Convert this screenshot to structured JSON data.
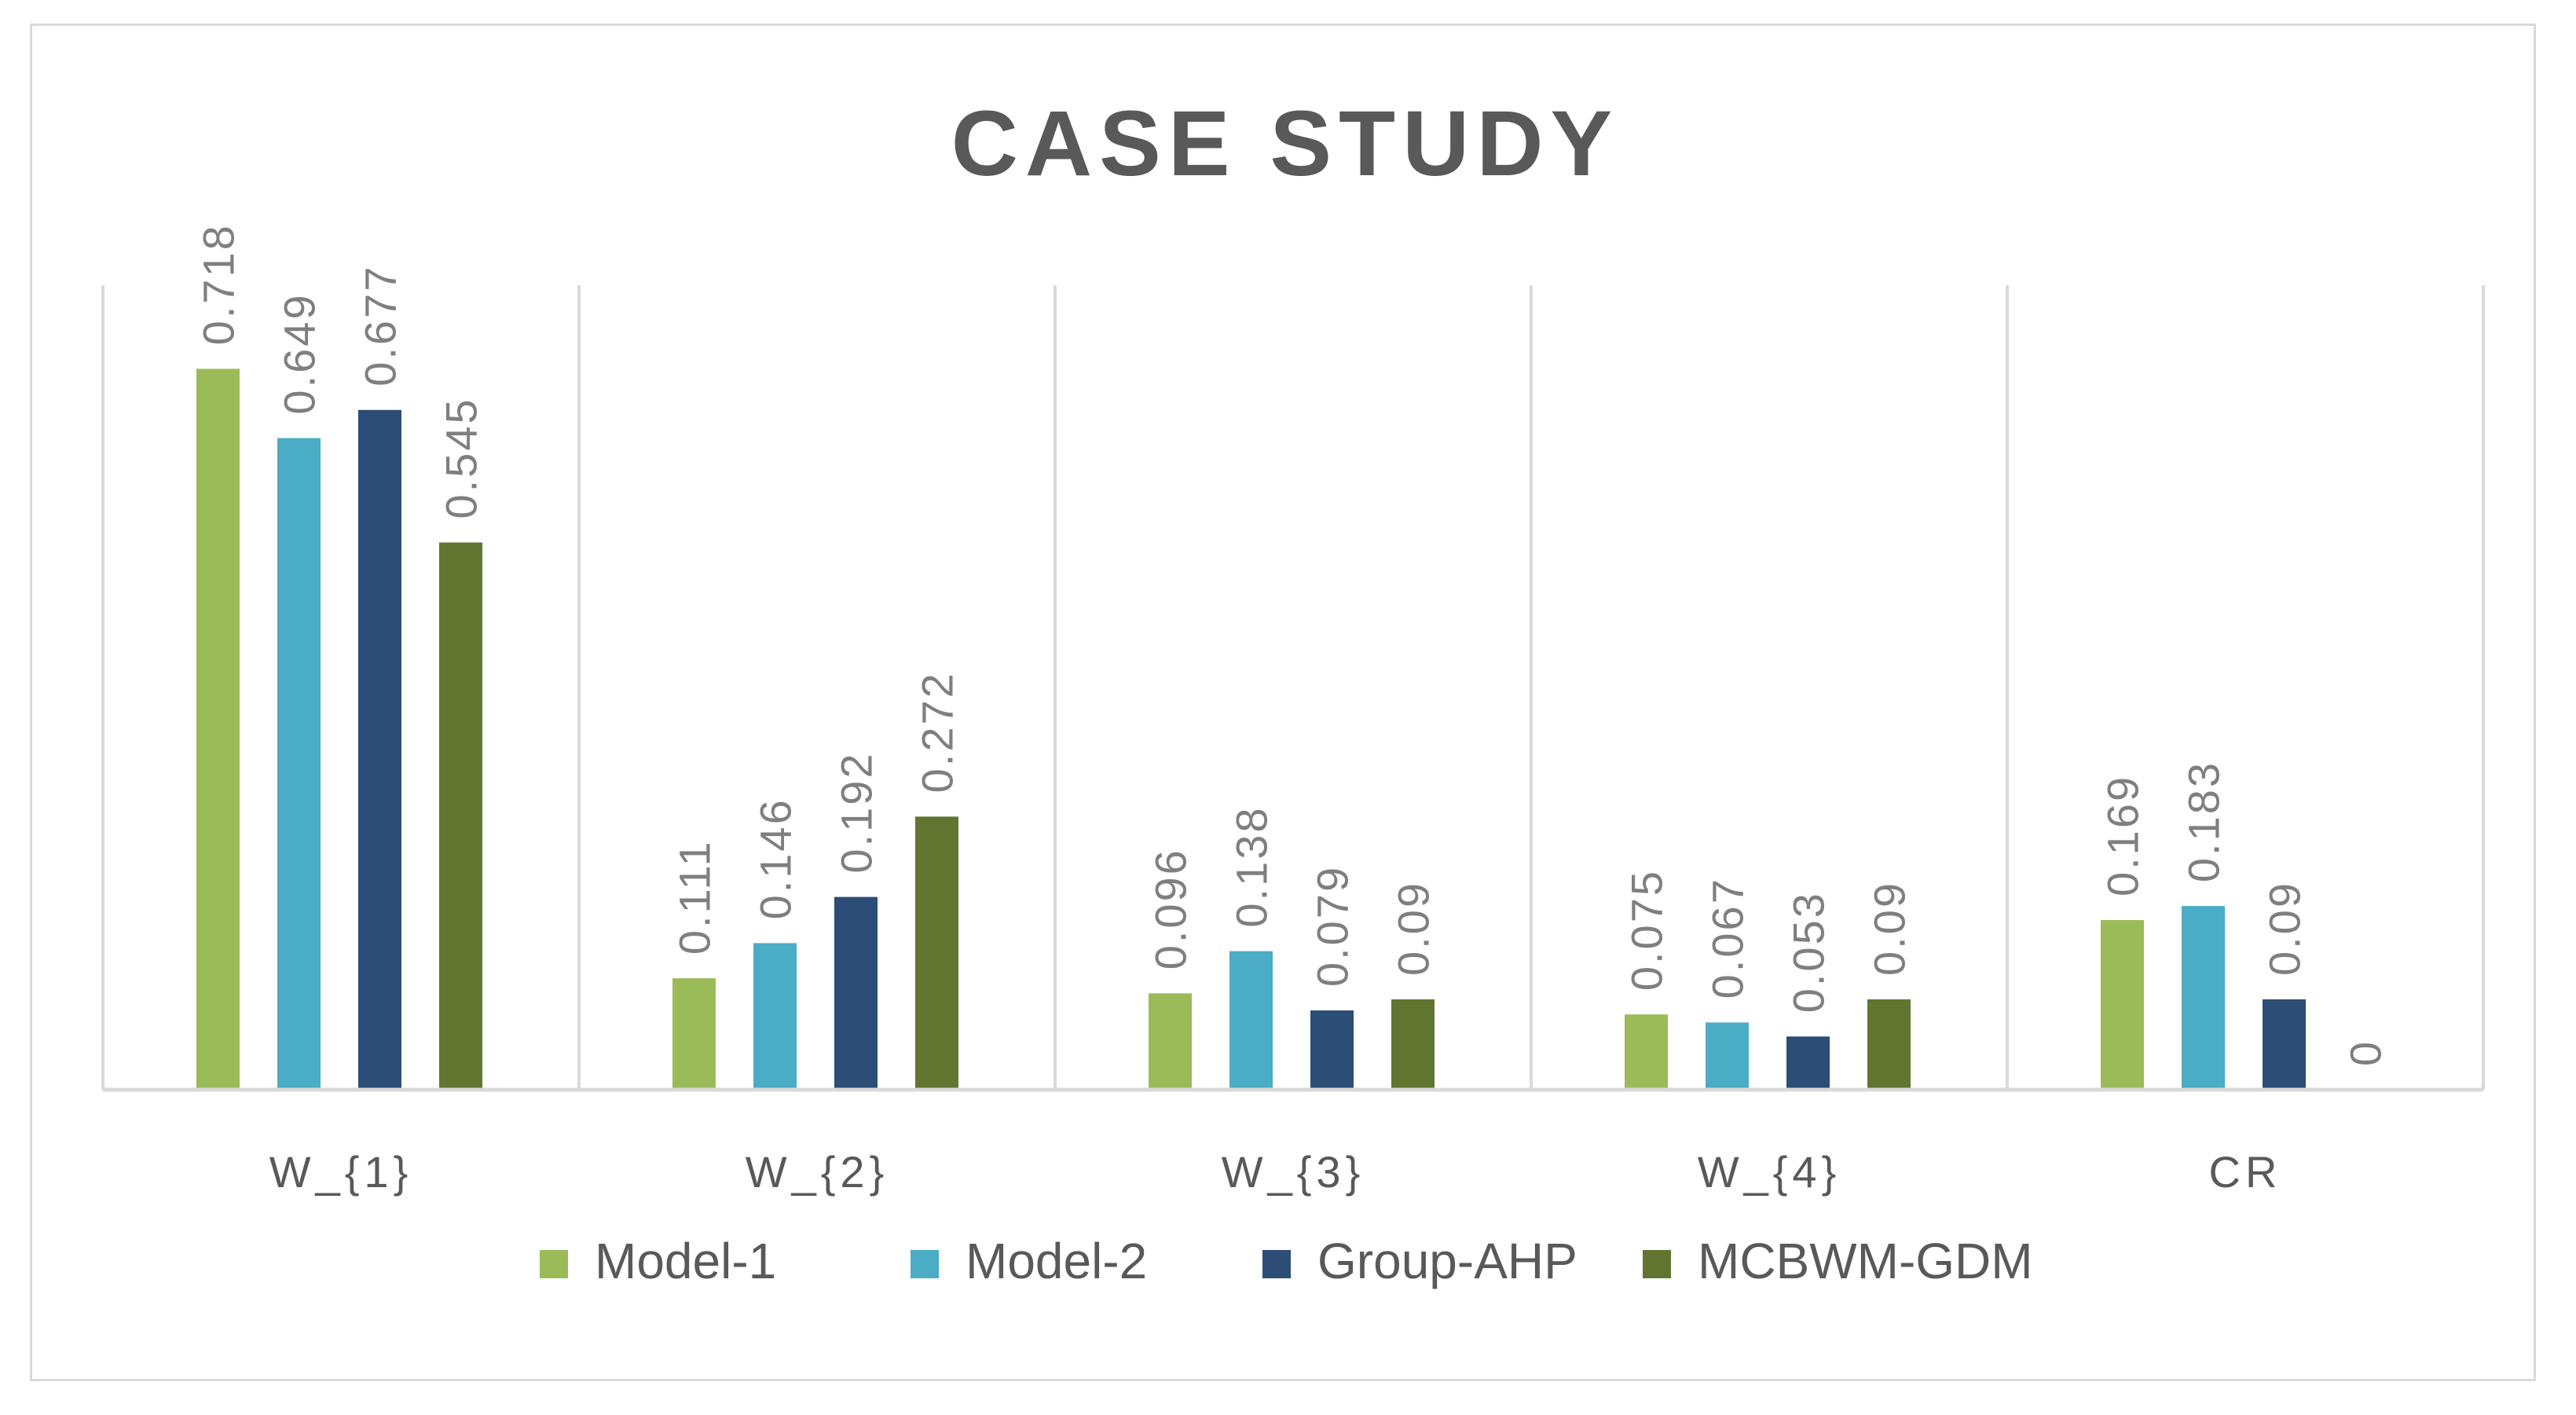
{
  "chart_data": {
    "type": "bar",
    "title": "CASE STUDY",
    "xlabel": "",
    "ylabel": "",
    "categories": [
      "W_{1}",
      "W_{2}",
      "W_{3}",
      "W_{4}",
      "CR"
    ],
    "ylim": [
      0,
      0.8
    ],
    "grid": false,
    "legend_position": "bottom",
    "series": [
      {
        "name": "Model-1",
        "color": "#9bbb59",
        "values": [
          0.718,
          0.111,
          0.096,
          0.075,
          0.169
        ]
      },
      {
        "name": "Model-2",
        "color": "#4bacc6",
        "values": [
          0.649,
          0.146,
          0.138,
          0.067,
          0.183
        ]
      },
      {
        "name": "Group-AHP",
        "color": "#2c4d75",
        "values": [
          0.677,
          0.192,
          0.079,
          0.053,
          0.09
        ]
      },
      {
        "name": "MCBWM-GDM",
        "color": "#617530",
        "values": [
          0.545,
          0.272,
          0.09,
          0.09,
          0
        ]
      }
    ]
  },
  "colors": {
    "axis": "#d9d9d9",
    "text": "#595959",
    "value_text": "#7f7f7f"
  }
}
